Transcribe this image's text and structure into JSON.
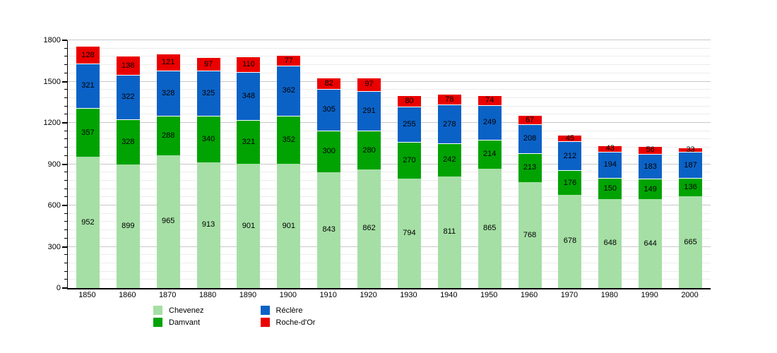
{
  "chart_data": {
    "type": "bar",
    "stacked": true,
    "title": "",
    "xlabel": "",
    "ylabel": "",
    "categories": [
      "1850",
      "1860",
      "1870",
      "1880",
      "1890",
      "1900",
      "1910",
      "1920",
      "1930",
      "1940",
      "1950",
      "1960",
      "1970",
      "1980",
      "1990",
      "2000"
    ],
    "series": [
      {
        "name": "Chevenez",
        "slug": "chevenez",
        "color": "#a5dfa5",
        "values": [
          952,
          899,
          965,
          913,
          901,
          901,
          843,
          862,
          794,
          811,
          865,
          768,
          678,
          648,
          644,
          665
        ]
      },
      {
        "name": "Damvant",
        "slug": "damvant",
        "color": "#00a302",
        "values": [
          357,
          328,
          288,
          340,
          321,
          352,
          300,
          280,
          270,
          242,
          214,
          213,
          176,
          150,
          149,
          136
        ]
      },
      {
        "name": "Réclère",
        "slug": "reclere",
        "color": "#0b62c6",
        "values": [
          321,
          322,
          328,
          325,
          348,
          362,
          305,
          291,
          255,
          278,
          249,
          208,
          212,
          194,
          183,
          187
        ]
      },
      {
        "name": "Roche-d'Or",
        "slug": "roche-d-or",
        "color": "#eb0000",
        "values": [
          128,
          138,
          121,
          97,
          110,
          77,
          82,
          97,
          80,
          78,
          74,
          67,
          45,
          43,
          56,
          33
        ]
      }
    ],
    "ylim": [
      0,
      1800
    ],
    "yticks": [
      "0",
      "300",
      "600",
      "900",
      "1200",
      "1500",
      "1800"
    ],
    "ytick_step": 300,
    "minor_step": 60,
    "grid": true,
    "legend_position": "bottom",
    "legend_columns": 2,
    "colors": {
      "axis": "#000000",
      "grid_minor": "#ececec",
      "grid_major": "#c8c8c8",
      "label_text": "#000000",
      "background": "#ffffff"
    }
  }
}
